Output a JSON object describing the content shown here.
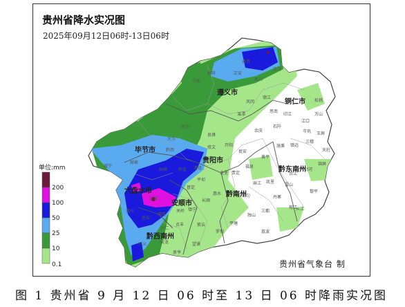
{
  "map": {
    "title": "贵州省降水实况图",
    "subtitle": "2025年09月12日06时-13日06时",
    "credit": "贵州省气象台 制",
    "caption": "图 1  贵州省 9 月 12 日 06 时至 13 日 06 时降雨实况图"
  },
  "legend": {
    "unit": "单位:mm",
    "levels": [
      {
        "label": "200",
        "color": "#6b1a3c"
      },
      {
        "label": "100",
        "color": "#e010e0"
      },
      {
        "label": "50",
        "color": "#1a1adc"
      },
      {
        "label": "25",
        "color": "#5aaaf0"
      },
      {
        "label": "10",
        "color": "#3a9a3a"
      },
      {
        "label": "0.1",
        "color": "#a6e68a"
      }
    ]
  },
  "cities": [
    {
      "name": "遵义市"
    },
    {
      "name": "铜仁市"
    },
    {
      "name": "毕节市"
    },
    {
      "name": "贵阳市"
    },
    {
      "name": "黔东南州"
    },
    {
      "name": "六盘水市"
    },
    {
      "name": "安顺市"
    },
    {
      "name": "黔南州"
    },
    {
      "name": "黔西南州"
    }
  ],
  "counties": [
    "习水",
    "桐梓",
    "正安",
    "道真",
    "务川",
    "沿河",
    "松桃",
    "印江",
    "江口",
    "石阡",
    "思南",
    "德江",
    "凤冈",
    "湄潭",
    "余庆",
    "金沙",
    "黔西",
    "大方",
    "织金",
    "纳雍",
    "赫章",
    "威宁",
    "水城",
    "盘州",
    "普安",
    "晴隆",
    "兴仁",
    "兴义",
    "安龙",
    "册亨",
    "望谟",
    "贞丰",
    "关岭",
    "镇宁",
    "紫云",
    "普定",
    "平坝",
    "清镇",
    "修文",
    "息烽",
    "开阳",
    "瓮安",
    "福泉",
    "贵定",
    "龙里",
    "惠水",
    "长顺",
    "罗甸",
    "平塘",
    "独山",
    "三都",
    "荔波",
    "丹寨",
    "雷山",
    "榕江",
    "从江",
    "黎平",
    "锦屏",
    "天柱",
    "剑河",
    "台江",
    "三穗",
    "镇远",
    "施秉",
    "黄平",
    "岑巩",
    "玉屏",
    "万山",
    "都匀",
    "凯里",
    "麻江"
  ]
}
